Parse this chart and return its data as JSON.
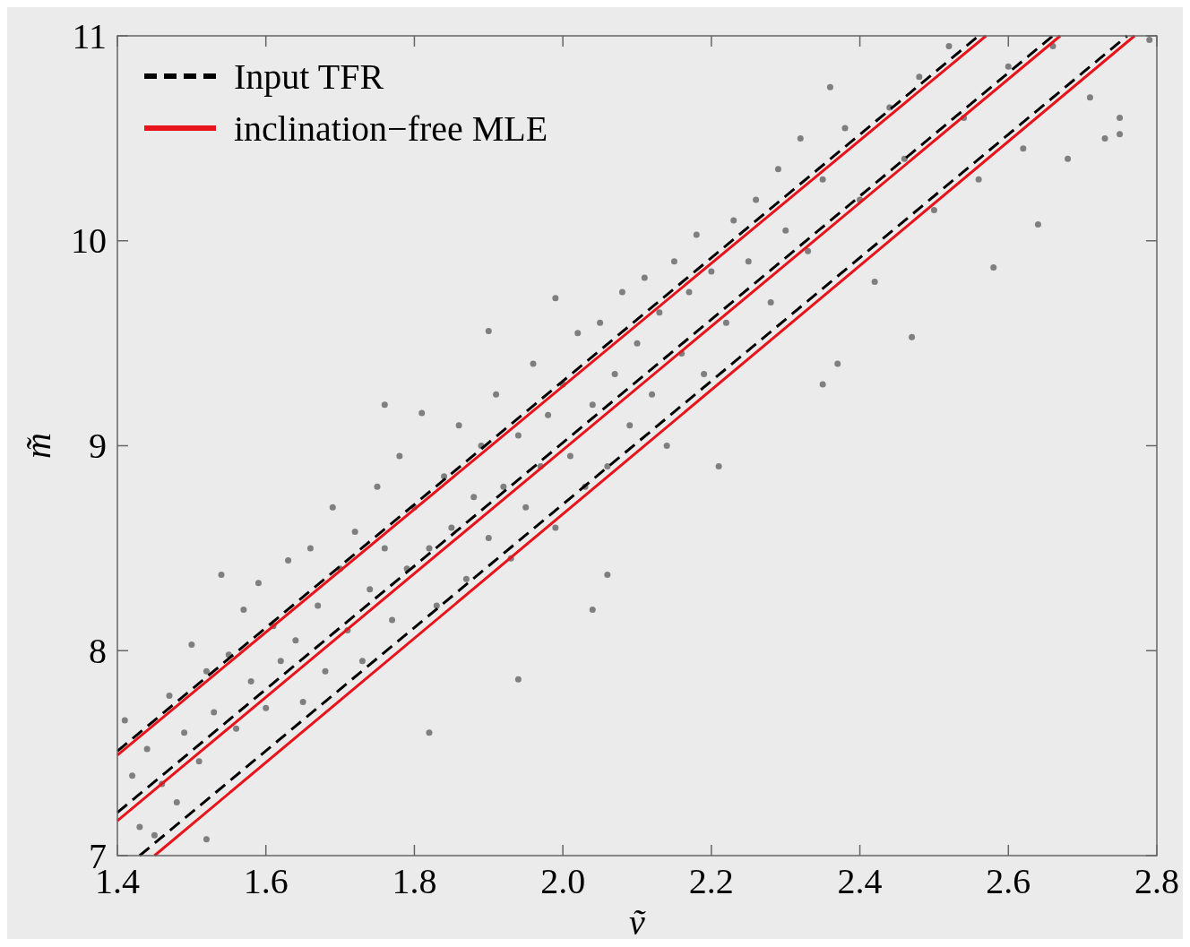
{
  "chart_data": {
    "type": "scatter",
    "xlabel": "ṽ",
    "ylabel": "m̃",
    "xlim": [
      1.4,
      2.8
    ],
    "ylim": [
      7,
      11
    ],
    "xticks": [
      1.4,
      1.6,
      1.8,
      {
        "value": 2,
        "label": "2.0"
      },
      2.2,
      2.4,
      2.6,
      2.8
    ],
    "yticks": [
      7,
      8,
      9,
      10,
      11
    ],
    "grid": false,
    "legend": "top left",
    "series": [
      {
        "color": "#7f7f7f",
        "marker": "circle",
        "x": [
          1.41,
          1.42,
          1.43,
          1.44,
          1.46,
          1.47,
          1.48,
          1.49,
          1.5,
          1.51,
          1.52,
          1.53,
          1.55,
          1.56,
          1.57,
          1.58,
          1.59,
          1.6,
          1.61,
          1.62,
          1.63,
          1.64,
          1.65,
          1.66,
          1.67,
          1.68,
          1.69,
          1.7,
          1.71,
          1.72,
          1.73,
          1.74,
          1.75,
          1.76,
          1.77,
          1.78,
          1.79,
          1.8,
          1.81,
          1.82,
          1.83,
          1.84,
          1.85,
          1.86,
          1.87,
          1.88,
          1.89,
          1.9,
          1.91,
          1.92,
          1.93,
          1.94,
          1.95,
          1.96,
          1.97,
          1.98,
          1.99,
          2,
          2.01,
          2.02,
          2.03,
          2.04,
          2.05,
          2.06,
          2.07,
          2.08,
          2.09,
          2.1,
          2.11,
          2.12,
          2.13,
          2.14,
          2.15,
          2.16,
          2.17,
          2.18,
          2.19,
          2.2,
          2.22,
          2.23,
          2.25,
          2.26,
          2.28,
          2.29,
          2.3,
          2.32,
          2.33,
          2.35,
          2.38,
          2.4,
          2.42,
          2.44,
          2.46,
          2.48,
          2.5,
          2.52,
          2.54,
          2.56,
          2.6,
          2.62,
          2.66,
          2.68,
          2.58,
          2.64,
          2.73,
          2.75,
          2.75,
          2.71,
          2.79,
          2.47,
          2.37,
          2.35,
          2.36,
          1.82,
          1.94,
          1.76,
          1.9,
          1.99,
          1.45,
          1.52,
          1.54,
          2.04,
          2.06,
          2.21
        ],
        "values": [
          7.66,
          7.39,
          7.14,
          7.52,
          7.35,
          7.78,
          7.26,
          7.6,
          8.03,
          7.46,
          7.9,
          7.7,
          7.98,
          7.62,
          8.2,
          7.85,
          8.33,
          7.72,
          8.12,
          7.95,
          8.44,
          8.05,
          7.75,
          8.5,
          8.22,
          7.9,
          8.7,
          8.4,
          8.1,
          8.58,
          7.95,
          8.3,
          8.8,
          8.5,
          8.15,
          8.95,
          8.4,
          8.7,
          9.16,
          8.5,
          8.22,
          8.85,
          8.6,
          9.1,
          8.35,
          8.75,
          9,
          8.55,
          9.25,
          8.8,
          8.45,
          9.05,
          8.7,
          9.4,
          8.9,
          9.15,
          8.6,
          9.3,
          8.95,
          9.55,
          8.8,
          9.2,
          9.6,
          8.9,
          9.35,
          9.75,
          9.1,
          9.5,
          9.82,
          9.25,
          9.65,
          9,
          9.9,
          9.45,
          9.75,
          10.03,
          9.35,
          9.85,
          9.6,
          10.1,
          9.9,
          10.2,
          9.7,
          10.35,
          10.05,
          10.5,
          9.95,
          10.3,
          10.55,
          10.2,
          9.8,
          10.65,
          10.4,
          10.8,
          10.15,
          10.95,
          10.6,
          10.3,
          10.85,
          10.45,
          10.95,
          10.4,
          9.87,
          10.08,
          10.5,
          10.6,
          10.52,
          10.7,
          10.98,
          9.53,
          9.4,
          9.3,
          10.75,
          7.6,
          7.86,
          9.2,
          9.56,
          9.72,
          7.1,
          7.08,
          8.37,
          8.2,
          8.37,
          8.9
        ]
      },
      {
        "type": "line",
        "name": "Input TFR",
        "color": "#000000",
        "line_style": "dashed",
        "x": [
          1.4,
          2.56
        ],
        "values": [
          7.51,
          11
        ]
      },
      {
        "type": "line",
        "color": "#000000",
        "line_style": "dashed",
        "x": [
          1.4,
          2.66
        ],
        "values": [
          7.21,
          11
        ]
      },
      {
        "type": "line",
        "color": "#000000",
        "line_style": "dashed",
        "x": [
          1.43,
          2.76
        ],
        "values": [
          7,
          11
        ]
      },
      {
        "type": "line",
        "name": "inclination−free MLE",
        "color": "#e8141c",
        "line_style": "solid",
        "x": [
          1.4,
          2.57
        ],
        "values": [
          7.49,
          11
        ]
      },
      {
        "type": "line",
        "color": "#e8141c",
        "line_style": "solid",
        "x": [
          1.4,
          2.67
        ],
        "values": [
          7.17,
          11
        ]
      },
      {
        "type": "line",
        "color": "#e8141c",
        "line_style": "solid",
        "x": [
          1.45,
          2.77
        ],
        "values": [
          7,
          11
        ]
      }
    ]
  }
}
